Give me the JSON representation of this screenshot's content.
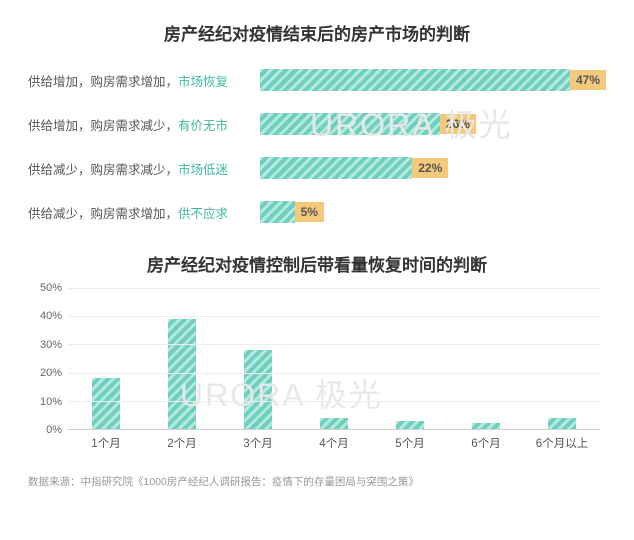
{
  "chart1": {
    "type": "bar-horizontal",
    "title": "房产经纪对疫情结束后的房产市场的判断",
    "title_fontsize": 17,
    "title_color": "#333333",
    "bar_color": "#6dd0bf",
    "bar_pattern": "diagonal-hatch",
    "value_bg": "#f5c97b",
    "label_color": "#555555",
    "keyword_color": "#3eb8a5",
    "max_value": 50,
    "rows": [
      {
        "prefix": "供给增加，购房需求增加，",
        "keyword": "市场恢复",
        "value": 47,
        "display": "47%"
      },
      {
        "prefix": "供给增加，购房需求减少，",
        "keyword": "有价无市",
        "value": 26,
        "display": "26%"
      },
      {
        "prefix": "供给减少，购房需求减少，",
        "keyword": "市场低迷",
        "value": 22,
        "display": "22%"
      },
      {
        "prefix": "供给减少，购房需求增加，",
        "keyword": "供不应求",
        "value": 5,
        "display": "5%"
      }
    ]
  },
  "chart2": {
    "type": "bar-vertical",
    "title": "房产经纪对疫情控制后带看量恢复时间的判断",
    "title_fontsize": 17,
    "title_color": "#333333",
    "bar_color": "#6dd0bf",
    "bar_pattern": "diagonal-hatch",
    "label_color": "#555555",
    "grid_color": "#eeeeee",
    "axis_color": "#d0d0d0",
    "ylim": [
      0,
      50
    ],
    "ytick_step": 10,
    "yticks": [
      "0%",
      "10%",
      "20%",
      "30%",
      "40%",
      "50%"
    ],
    "categories": [
      "1个月",
      "2个月",
      "3个月",
      "4个月",
      "5个月",
      "6个月",
      "6个月以上"
    ],
    "values": [
      18,
      39,
      28,
      4,
      3,
      2,
      4
    ]
  },
  "footer": "数据来源：中指研究院《1000房产经纪人调研报告：疫情下的存量困局与突围之策》",
  "watermark": "URORA 极光",
  "background_color": "#ffffff"
}
